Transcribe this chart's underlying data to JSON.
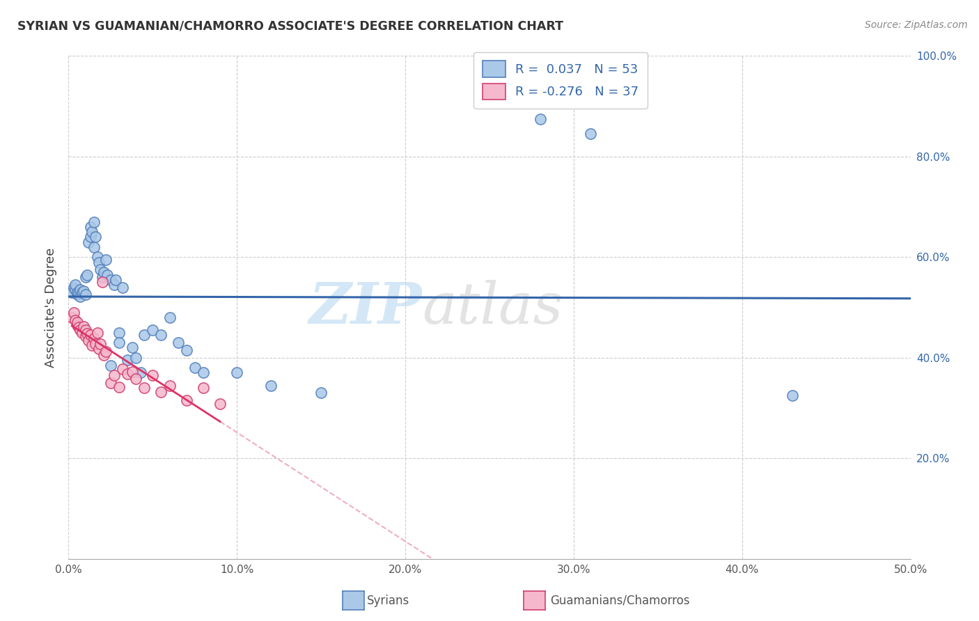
{
  "title": "SYRIAN VS GUAMANIAN/CHAMORRO ASSOCIATE'S DEGREE CORRELATION CHART",
  "source": "Source: ZipAtlas.com",
  "ylabel": "Associate's Degree",
  "blue_color": "#aac8e8",
  "pink_color": "#f5b8cc",
  "blue_edge_color": "#5580bb",
  "pink_edge_color": "#d04070",
  "blue_line_color": "#3366aa",
  "pink_line_color": "#dd3366",
  "legend_text_color": "#3366aa",
  "blue_R": "0.037",
  "blue_N": "53",
  "pink_R": "-0.276",
  "pink_N": "37",
  "xlim": [
    0.0,
    50.0
  ],
  "ylim": [
    0.0,
    1.0
  ],
  "syrians_x": [
    0.2,
    0.3,
    0.4,
    0.4,
    0.5,
    0.5,
    0.6,
    0.7,
    0.7,
    0.8,
    0.9,
    1.0,
    1.0,
    1.1,
    1.2,
    1.3,
    1.3,
    1.4,
    1.5,
    1.5,
    1.6,
    1.7,
    1.8,
    1.9,
    2.0,
    2.1,
    2.2,
    2.3,
    2.5,
    2.5,
    2.7,
    2.8,
    3.0,
    3.0,
    3.2,
    3.5,
    3.8,
    4.0,
    4.3,
    4.5,
    5.0,
    5.5,
    6.0,
    6.5,
    7.0,
    7.5,
    8.0,
    10.0,
    12.0,
    15.0,
    28.0,
    31.0,
    43.0
  ],
  "syrians_y": [
    0.53,
    0.54,
    0.535,
    0.545,
    0.525,
    0.53,
    0.528,
    0.522,
    0.535,
    0.53,
    0.532,
    0.525,
    0.56,
    0.565,
    0.63,
    0.64,
    0.66,
    0.65,
    0.67,
    0.62,
    0.64,
    0.6,
    0.59,
    0.575,
    0.56,
    0.57,
    0.595,
    0.565,
    0.555,
    0.385,
    0.545,
    0.555,
    0.45,
    0.43,
    0.54,
    0.395,
    0.42,
    0.4,
    0.37,
    0.445,
    0.455,
    0.445,
    0.48,
    0.43,
    0.415,
    0.38,
    0.37,
    0.37,
    0.345,
    0.33,
    0.875,
    0.845,
    0.325
  ],
  "guamanians_x": [
    0.2,
    0.3,
    0.4,
    0.5,
    0.5,
    0.6,
    0.7,
    0.8,
    0.9,
    1.0,
    1.0,
    1.1,
    1.2,
    1.3,
    1.4,
    1.5,
    1.6,
    1.7,
    1.8,
    1.9,
    2.0,
    2.1,
    2.2,
    2.5,
    2.7,
    3.0,
    3.2,
    3.5,
    3.8,
    4.0,
    4.5,
    5.0,
    5.5,
    6.0,
    7.0,
    8.0,
    9.0
  ],
  "guamanians_y": [
    0.48,
    0.49,
    0.475,
    0.465,
    0.47,
    0.46,
    0.455,
    0.45,
    0.462,
    0.442,
    0.455,
    0.448,
    0.435,
    0.445,
    0.425,
    0.438,
    0.428,
    0.45,
    0.418,
    0.428,
    0.55,
    0.405,
    0.412,
    0.35,
    0.365,
    0.342,
    0.378,
    0.368,
    0.372,
    0.358,
    0.34,
    0.365,
    0.332,
    0.345,
    0.315,
    0.34,
    0.308
  ]
}
